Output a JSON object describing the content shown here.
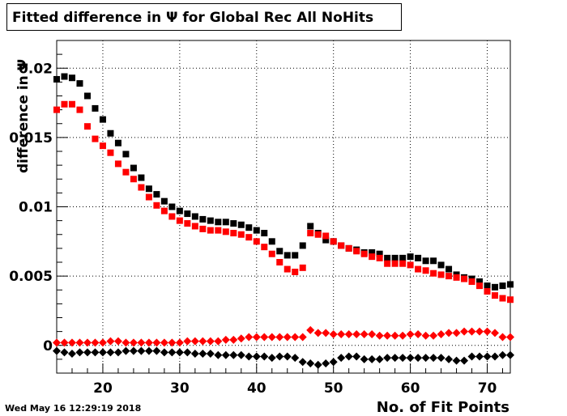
{
  "chart_data": {
    "type": "scatter",
    "title": "Fitted difference in  Ψ  for Global Rec All NoHits",
    "xlabel": "No. of Fit Points",
    "ylabel": "difference in Ψ",
    "xlim": [
      14,
      73
    ],
    "ylim": [
      -0.002,
      0.022
    ],
    "x_ticks": [
      20,
      30,
      40,
      50,
      60,
      70
    ],
    "x_tick_labels": [
      "20",
      "30",
      "40",
      "50",
      "60",
      "70"
    ],
    "y_ticks": [
      0,
      0.005,
      0.01,
      0.015,
      0.02
    ],
    "y_tick_labels": [
      "0",
      "0.005",
      "0.01",
      "0.015",
      "0.02"
    ],
    "grid": true,
    "x": [
      14,
      15,
      16,
      17,
      18,
      19,
      20,
      21,
      22,
      23,
      24,
      25,
      26,
      27,
      28,
      29,
      30,
      31,
      32,
      33,
      34,
      35,
      36,
      37,
      38,
      39,
      40,
      41,
      42,
      43,
      44,
      45,
      46,
      47,
      48,
      49,
      50,
      51,
      52,
      53,
      54,
      55,
      56,
      57,
      58,
      59,
      60,
      61,
      62,
      63,
      64,
      65,
      66,
      67,
      68,
      69,
      70,
      71,
      72,
      73
    ],
    "series": [
      {
        "marker": "square",
        "color": "#000000",
        "values": [
          0.0192,
          0.0194,
          0.0193,
          0.0189,
          0.018,
          0.0171,
          0.0163,
          0.0153,
          0.0146,
          0.0138,
          0.0128,
          0.0121,
          0.0113,
          0.0109,
          0.0104,
          0.01,
          0.0097,
          0.0095,
          0.0093,
          0.0091,
          0.009,
          0.0089,
          0.0089,
          0.0088,
          0.0087,
          0.0085,
          0.0083,
          0.0081,
          0.0075,
          0.0068,
          0.0065,
          0.0065,
          0.0072,
          0.0086,
          0.0081,
          0.0076,
          0.0075,
          0.0072,
          0.007,
          0.0069,
          0.0067,
          0.0067,
          0.0066,
          0.0063,
          0.0063,
          0.0063,
          0.0064,
          0.0063,
          0.0061,
          0.0061,
          0.0058,
          0.0055,
          0.0051,
          0.0049,
          0.0048,
          0.0046,
          0.0043,
          0.0042,
          0.0043,
          0.0044
        ]
      },
      {
        "marker": "square",
        "color": "#ff0000",
        "values": [
          0.017,
          0.0174,
          0.0174,
          0.017,
          0.0158,
          0.0149,
          0.0144,
          0.0139,
          0.0131,
          0.0125,
          0.012,
          0.0114,
          0.0107,
          0.0101,
          0.0097,
          0.0093,
          0.009,
          0.0088,
          0.0086,
          0.0084,
          0.0083,
          0.0083,
          0.0082,
          0.0081,
          0.008,
          0.0078,
          0.0075,
          0.0071,
          0.0066,
          0.006,
          0.0055,
          0.0053,
          0.0056,
          0.0081,
          0.008,
          0.0079,
          0.0075,
          0.0072,
          0.007,
          0.0068,
          0.0066,
          0.0064,
          0.0063,
          0.0059,
          0.0059,
          0.0059,
          0.0058,
          0.0055,
          0.0054,
          0.0052,
          0.0051,
          0.005,
          0.0049,
          0.0048,
          0.0046,
          0.0043,
          0.0039,
          0.0036,
          0.0034,
          0.0033
        ]
      },
      {
        "marker": "diamond",
        "color": "#ff0000",
        "values": [
          0.0002,
          0.0002,
          0.0002,
          0.0002,
          0.0002,
          0.0002,
          0.0002,
          0.0003,
          0.0003,
          0.0002,
          0.0002,
          0.0002,
          0.0002,
          0.0002,
          0.0002,
          0.0002,
          0.0002,
          0.0003,
          0.0003,
          0.0003,
          0.0003,
          0.0003,
          0.0004,
          0.0004,
          0.0005,
          0.0006,
          0.0006,
          0.0006,
          0.0006,
          0.0006,
          0.0006,
          0.0006,
          0.0006,
          0.0011,
          0.0009,
          0.0009,
          0.0008,
          0.0008,
          0.0008,
          0.0008,
          0.0008,
          0.0008,
          0.0007,
          0.0007,
          0.0007,
          0.0007,
          0.0008,
          0.0008,
          0.0007,
          0.0007,
          0.0008,
          0.0009,
          0.0009,
          0.001,
          0.001,
          0.001,
          0.001,
          0.0009,
          0.0006,
          0.0006
        ]
      },
      {
        "marker": "diamond",
        "color": "#000000",
        "values": [
          -0.0004,
          -0.0005,
          -0.0006,
          -0.0005,
          -0.0005,
          -0.0005,
          -0.0005,
          -0.0005,
          -0.0005,
          -0.0004,
          -0.0004,
          -0.0004,
          -0.0004,
          -0.0004,
          -0.0005,
          -0.0005,
          -0.0005,
          -0.0005,
          -0.0006,
          -0.0006,
          -0.0006,
          -0.0007,
          -0.0007,
          -0.0007,
          -0.0007,
          -0.0008,
          -0.0008,
          -0.0008,
          -0.0009,
          -0.0008,
          -0.0008,
          -0.0009,
          -0.0012,
          -0.0013,
          -0.0014,
          -0.0013,
          -0.0012,
          -0.0009,
          -0.0008,
          -0.0008,
          -0.001,
          -0.001,
          -0.001,
          -0.0009,
          -0.0009,
          -0.0009,
          -0.0009,
          -0.0009,
          -0.0009,
          -0.0009,
          -0.0009,
          -0.001,
          -0.0011,
          -0.0011,
          -0.0008,
          -0.0008,
          -0.0008,
          -0.0008,
          -0.0007,
          -0.0007
        ]
      }
    ]
  },
  "datestamp": "Wed May 16 12:29:19 2018"
}
